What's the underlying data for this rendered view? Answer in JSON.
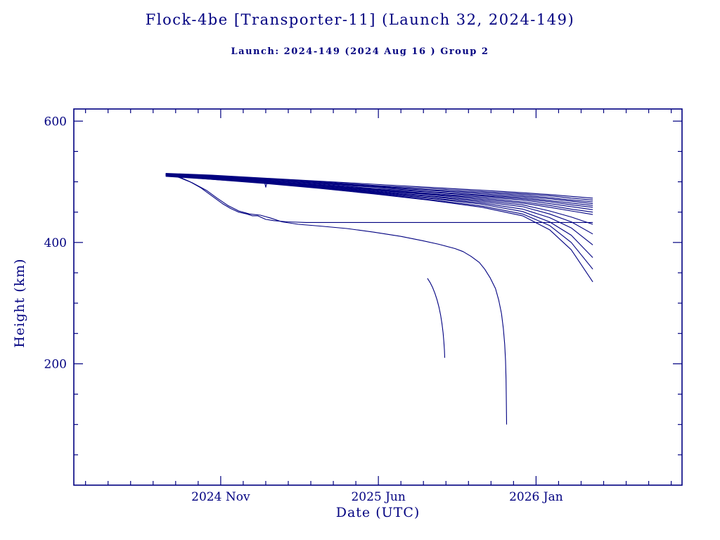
{
  "page": {
    "background": "#ffffff",
    "accent": "#000080"
  },
  "header": {
    "title": "Flock-4be [Transporter-11] (Launch 32, 2024-149)",
    "subtitle": "Launch: 2024-149  (2024 Aug 16 )  Group 2"
  },
  "chart_data": {
    "type": "line",
    "title": "Flock-4be [Transporter-11] (Launch 32, 2024-149)",
    "subtitle": "Launch: 2024-149  (2024 Aug 16 )  Group 2",
    "xlabel": "Date (UTC)",
    "ylabel": "Height (km)",
    "xlim": [
      2024.29,
      2026.54
    ],
    "ylim": [
      0,
      620
    ],
    "grid": false,
    "legend": "none",
    "line_color": "#000080",
    "x_ticks": [
      {
        "value": 2024.8333,
        "label": "2024 Nov"
      },
      {
        "value": 2025.4167,
        "label": "2025 Jun"
      },
      {
        "value": 2026.0,
        "label": "2026 Jan"
      }
    ],
    "y_ticks": [
      {
        "value": 200,
        "label": "200"
      },
      {
        "value": 400,
        "label": "400"
      },
      {
        "value": 600,
        "label": "600"
      }
    ],
    "y_minor_step": 50,
    "x_minor_step_months": 1,
    "series": [
      {
        "points": [
          [
            2024.63,
            514
          ],
          [
            2024.8,
            511
          ],
          [
            2025.0,
            506
          ],
          [
            2025.2,
            501
          ],
          [
            2025.4,
            496
          ],
          [
            2025.6,
            491
          ],
          [
            2025.8,
            486
          ],
          [
            2025.95,
            482
          ],
          [
            2026.05,
            479
          ],
          [
            2026.13,
            476
          ],
          [
            2026.21,
            473
          ]
        ]
      },
      {
        "points": [
          [
            2024.63,
            513
          ],
          [
            2024.8,
            510
          ],
          [
            2025.0,
            505
          ],
          [
            2025.2,
            500
          ],
          [
            2025.4,
            494
          ],
          [
            2025.6,
            489
          ],
          [
            2025.8,
            484
          ],
          [
            2025.95,
            480
          ],
          [
            2026.05,
            477
          ],
          [
            2026.13,
            473
          ],
          [
            2026.21,
            470
          ]
        ]
      },
      {
        "points": [
          [
            2024.63,
            513
          ],
          [
            2024.8,
            510
          ],
          [
            2025.0,
            504
          ],
          [
            2025.2,
            499
          ],
          [
            2025.4,
            493
          ],
          [
            2025.6,
            487
          ],
          [
            2025.8,
            482
          ],
          [
            2025.95,
            478
          ],
          [
            2026.05,
            474
          ],
          [
            2026.13,
            470
          ],
          [
            2026.21,
            467
          ]
        ]
      },
      {
        "points": [
          [
            2024.63,
            513
          ],
          [
            2024.8,
            509
          ],
          [
            2025.0,
            503
          ],
          [
            2025.2,
            498
          ],
          [
            2025.4,
            492
          ],
          [
            2025.6,
            486
          ],
          [
            2025.8,
            480
          ],
          [
            2025.95,
            476
          ],
          [
            2026.05,
            472
          ],
          [
            2026.13,
            468
          ],
          [
            2026.21,
            464
          ]
        ]
      },
      {
        "points": [
          [
            2024.63,
            512
          ],
          [
            2024.8,
            509
          ],
          [
            2025.0,
            503
          ],
          [
            2025.2,
            497
          ],
          [
            2025.4,
            491
          ],
          [
            2025.6,
            484
          ],
          [
            2025.8,
            478
          ],
          [
            2025.95,
            474
          ],
          [
            2026.05,
            469
          ],
          [
            2026.13,
            465
          ],
          [
            2026.21,
            461
          ]
        ]
      },
      {
        "points": [
          [
            2024.63,
            512
          ],
          [
            2024.8,
            508
          ],
          [
            2025.0,
            502
          ],
          [
            2025.2,
            496
          ],
          [
            2025.4,
            489
          ],
          [
            2025.6,
            483
          ],
          [
            2025.8,
            477
          ],
          [
            2025.95,
            472
          ],
          [
            2026.05,
            467
          ],
          [
            2026.13,
            462
          ],
          [
            2026.21,
            458
          ]
        ]
      },
      {
        "points": [
          [
            2024.63,
            512
          ],
          [
            2024.8,
            508
          ],
          [
            2025.0,
            501
          ],
          [
            2025.2,
            495
          ],
          [
            2025.4,
            488
          ],
          [
            2025.6,
            481
          ],
          [
            2025.8,
            475
          ],
          [
            2025.95,
            470
          ],
          [
            2026.05,
            464
          ],
          [
            2026.13,
            459
          ],
          [
            2026.21,
            454
          ]
        ]
      },
      {
        "points": [
          [
            2024.63,
            511
          ],
          [
            2024.8,
            507
          ],
          [
            2025.0,
            501
          ],
          [
            2025.2,
            494
          ],
          [
            2025.4,
            487
          ],
          [
            2025.6,
            480
          ],
          [
            2025.8,
            473
          ],
          [
            2025.95,
            467
          ],
          [
            2026.05,
            461
          ],
          [
            2026.13,
            455
          ],
          [
            2026.21,
            450
          ]
        ]
      },
      {
        "points": [
          [
            2024.63,
            511
          ],
          [
            2024.8,
            507
          ],
          [
            2024.995,
            500
          ],
          [
            2025.0,
            491
          ],
          [
            2025.005,
            500
          ],
          [
            2025.2,
            493
          ],
          [
            2025.4,
            486
          ],
          [
            2025.6,
            479
          ],
          [
            2025.8,
            471
          ],
          [
            2025.95,
            465
          ],
          [
            2026.05,
            458
          ],
          [
            2026.13,
            452
          ],
          [
            2026.21,
            446
          ]
        ]
      },
      {
        "points": [
          [
            2024.63,
            511
          ],
          [
            2024.8,
            506
          ],
          [
            2025.0,
            500
          ],
          [
            2025.2,
            492
          ],
          [
            2025.4,
            485
          ],
          [
            2025.6,
            477
          ],
          [
            2025.8,
            469
          ],
          [
            2025.95,
            462
          ],
          [
            2026.05,
            452
          ],
          [
            2026.13,
            442
          ],
          [
            2026.21,
            430
          ]
        ]
      },
      {
        "points": [
          [
            2024.63,
            511
          ],
          [
            2024.8,
            506
          ],
          [
            2025.0,
            499
          ],
          [
            2025.2,
            492
          ],
          [
            2025.4,
            484
          ],
          [
            2025.6,
            476
          ],
          [
            2025.8,
            467
          ],
          [
            2025.95,
            459
          ],
          [
            2026.05,
            447
          ],
          [
            2026.13,
            434
          ],
          [
            2026.21,
            414
          ]
        ]
      },
      {
        "points": [
          [
            2024.63,
            510
          ],
          [
            2024.8,
            505
          ],
          [
            2025.0,
            499
          ],
          [
            2025.2,
            491
          ],
          [
            2025.4,
            483
          ],
          [
            2025.6,
            474
          ],
          [
            2025.8,
            465
          ],
          [
            2025.95,
            455
          ],
          [
            2026.05,
            441
          ],
          [
            2026.13,
            424
          ],
          [
            2026.21,
            396
          ]
        ]
      },
      {
        "points": [
          [
            2024.63,
            510
          ],
          [
            2024.8,
            505
          ],
          [
            2025.0,
            498
          ],
          [
            2025.2,
            490
          ],
          [
            2025.4,
            482
          ],
          [
            2025.6,
            473
          ],
          [
            2025.8,
            463
          ],
          [
            2025.95,
            451
          ],
          [
            2026.05,
            434
          ],
          [
            2026.13,
            412
          ],
          [
            2026.21,
            375
          ]
        ]
      },
      {
        "points": [
          [
            2024.63,
            510
          ],
          [
            2024.8,
            504
          ],
          [
            2025.0,
            498
          ],
          [
            2025.2,
            490
          ],
          [
            2025.4,
            481
          ],
          [
            2025.6,
            471
          ],
          [
            2025.8,
            460
          ],
          [
            2025.95,
            447
          ],
          [
            2026.05,
            428
          ],
          [
            2026.13,
            400
          ],
          [
            2026.21,
            356
          ]
        ]
      },
      {
        "points": [
          [
            2024.63,
            509
          ],
          [
            2024.8,
            504
          ],
          [
            2025.0,
            497
          ],
          [
            2025.2,
            489
          ],
          [
            2025.4,
            480
          ],
          [
            2025.6,
            470
          ],
          [
            2025.8,
            458
          ],
          [
            2025.95,
            444
          ],
          [
            2026.05,
            421
          ],
          [
            2026.13,
            388
          ],
          [
            2026.21,
            335
          ]
        ]
      },
      {
        "points": [
          [
            2024.63,
            513
          ],
          [
            2024.68,
            508
          ],
          [
            2024.72,
            500
          ],
          [
            2024.76,
            490
          ],
          [
            2024.8,
            477
          ],
          [
            2024.84,
            464
          ],
          [
            2024.87,
            456
          ],
          [
            2024.9,
            450
          ],
          [
            2024.93,
            447
          ],
          [
            2024.95,
            444
          ],
          [
            2024.97,
            444
          ],
          [
            2025.0,
            438
          ],
          [
            2025.03,
            436
          ],
          [
            2025.08,
            434
          ],
          [
            2025.15,
            433
          ],
          [
            2026.21,
            433
          ]
        ]
      },
      {
        "points": [
          [
            2024.63,
            513
          ],
          [
            2024.68,
            507
          ],
          [
            2024.73,
            498
          ],
          [
            2024.78,
            486
          ],
          [
            2024.82,
            473
          ],
          [
            2024.86,
            461
          ],
          [
            2024.9,
            452
          ],
          [
            2024.94,
            447
          ],
          [
            2024.98,
            445
          ],
          [
            2025.02,
            440
          ],
          [
            2025.06,
            434
          ],
          [
            2025.12,
            430
          ],
          [
            2025.2,
            427
          ],
          [
            2025.3,
            423
          ],
          [
            2025.4,
            417
          ],
          [
            2025.5,
            410
          ],
          [
            2025.58,
            403
          ],
          [
            2025.64,
            397
          ],
          [
            2025.7,
            390
          ],
          [
            2025.73,
            385
          ],
          [
            2025.76,
            377
          ],
          [
            2025.79,
            367
          ],
          [
            2025.81,
            356
          ],
          [
            2025.83,
            342
          ],
          [
            2025.85,
            324
          ],
          [
            2025.862,
            305
          ],
          [
            2025.872,
            283
          ],
          [
            2025.879,
            258
          ],
          [
            2025.884,
            232
          ],
          [
            2025.887,
            205
          ],
          [
            2025.889,
            175
          ],
          [
            2025.89,
            140
          ],
          [
            2025.891,
            100
          ]
        ]
      },
      {
        "points": [
          [
            2025.598,
            341
          ],
          [
            2025.608,
            334
          ],
          [
            2025.617,
            326
          ],
          [
            2025.626,
            316
          ],
          [
            2025.634,
            305
          ],
          [
            2025.641,
            293
          ],
          [
            2025.647,
            280
          ],
          [
            2025.652,
            266
          ],
          [
            2025.656,
            251
          ],
          [
            2025.659,
            236
          ],
          [
            2025.661,
            222
          ],
          [
            2025.662,
            210
          ]
        ]
      }
    ]
  }
}
